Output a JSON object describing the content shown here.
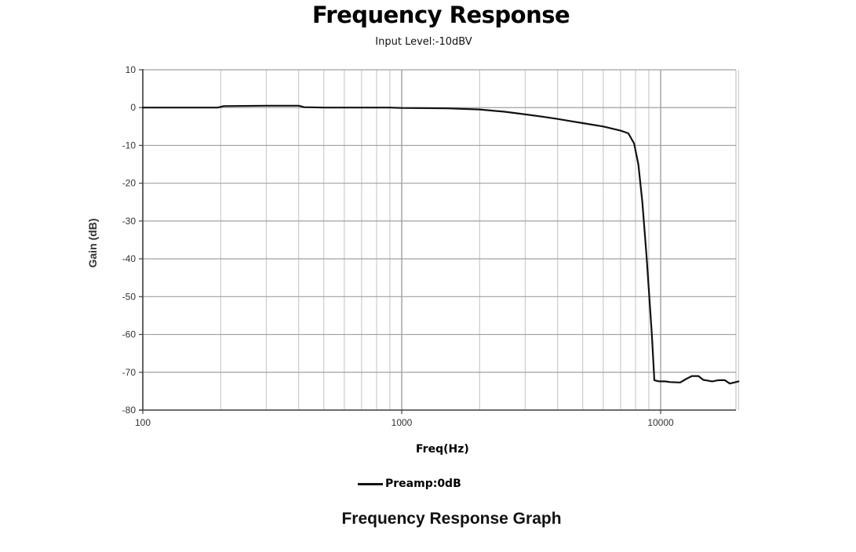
{
  "header": {
    "title": "Frequency Response",
    "subtitle": "Input Level:-10dBV"
  },
  "footer": {
    "caption": "Frequency Response Graph"
  },
  "colors": {
    "curve": "#111111",
    "major_grid": "#a0a0a0",
    "minor_grid": "#cccccc",
    "axis": "#444444"
  },
  "chart_data": {
    "type": "line",
    "title": "Frequency Response",
    "subtitle": "Input Level:-10dBV",
    "xlabel": "Freq(Hz)",
    "ylabel": "Gain (dB)",
    "xscale": "log",
    "xlim": [
      100,
      20000
    ],
    "ylim": [
      -80,
      10
    ],
    "x_ticks": [
      100,
      1000,
      10000
    ],
    "x_tick_labels": [
      "100",
      "1000",
      "10000"
    ],
    "y_ticks": [
      10,
      0,
      -10,
      -20,
      -30,
      -40,
      -50,
      -60,
      -70,
      -80
    ],
    "y_tick_labels": [
      "10",
      "0",
      "-10",
      "-20",
      "-30",
      "-40",
      "-50",
      "-60",
      "-70",
      "-80"
    ],
    "grid": true,
    "legend_position": "bottom",
    "series": [
      {
        "name": "Preamp:0dB",
        "x": [
          100,
          150,
          195,
          205,
          300,
          400,
          420,
          500,
          700,
          900,
          1000,
          1500,
          2000,
          2500,
          3000,
          3500,
          4000,
          4500,
          5000,
          6000,
          7000,
          7500,
          7900,
          8200,
          8500,
          8840,
          9250,
          9460,
          9880,
          10400,
          10900,
          11900,
          12600,
          13200,
          14000,
          14600,
          15800,
          16700,
          17700,
          18500,
          20000
        ],
        "y": [
          0,
          0,
          0,
          0.4,
          0.5,
          0.5,
          0.1,
          0,
          0,
          0,
          -0.1,
          -0.2,
          -0.5,
          -1.1,
          -1.8,
          -2.4,
          -3.0,
          -3.6,
          -4.1,
          -5.0,
          -6.1,
          -6.8,
          -9.5,
          -15,
          -25,
          -40,
          -60,
          -72.1,
          -72.4,
          -72.4,
          -72.6,
          -72.7,
          -71.7,
          -71.0,
          -71.0,
          -72.0,
          -72.4,
          -72.1,
          -72.1,
          -73.0,
          -72.4
        ]
      }
    ]
  }
}
